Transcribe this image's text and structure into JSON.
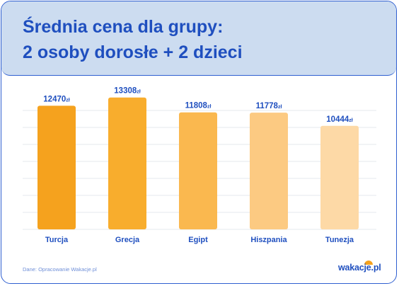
{
  "title": {
    "line1": "Średnia cena dla grupy:",
    "line2": "2 osoby dorosłe + 2 dzieci"
  },
  "chart_data": {
    "type": "bar",
    "categories": [
      "Turcja",
      "Grecja",
      "Egipt",
      "Hiszpania",
      "Tunezja"
    ],
    "values": [
      12470,
      13308,
      11808,
      11778,
      10444
    ],
    "value_unit": "zł",
    "data_labels": [
      "12470",
      "13308",
      "11808",
      "11778",
      "10444"
    ],
    "colors": [
      "#f5a21e",
      "#f8ad2d",
      "#fab84f",
      "#fcca82",
      "#fdd9a6"
    ],
    "ylim": [
      0,
      14000
    ],
    "grid": true,
    "legend": "none"
  },
  "footer": {
    "source": "Dane: Opracowanie Wakacje.pl",
    "logo_text": "wakacje.pl"
  }
}
